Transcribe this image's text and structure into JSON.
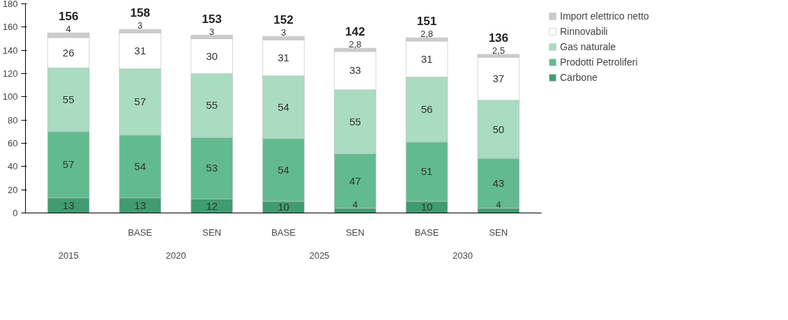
{
  "chart_data": {
    "type": "bar",
    "stacked": true,
    "categories": [
      null,
      "BASE",
      "SEN",
      "BASE",
      "SEN",
      "BASE",
      "SEN"
    ],
    "series": [
      {
        "name": "Carbone",
        "color": "#3f9c70",
        "values": [
          13,
          13,
          12,
          10,
          4,
          10,
          4
        ],
        "value_labels": [
          "13",
          "13",
          "12",
          "10",
          "4",
          "10",
          "4"
        ]
      },
      {
        "name": "Prodotti Petroliferi",
        "color": "#62bb8e",
        "values": [
          57,
          54,
          53,
          54,
          47,
          51,
          43
        ],
        "value_labels": [
          "57",
          "54",
          "53",
          "54",
          "47",
          "51",
          "43"
        ]
      },
      {
        "name": "Gas naturale",
        "color": "#aadcc2",
        "values": [
          55,
          57,
          55,
          54,
          55,
          56,
          50
        ],
        "value_labels": [
          "55",
          "57",
          "55",
          "54",
          "55",
          "56",
          "50"
        ]
      },
      {
        "name": "Rinnovabili",
        "color": "#ffffff",
        "values": [
          26,
          31,
          30,
          31,
          33,
          31,
          37
        ],
        "value_labels": [
          "26",
          "31",
          "30",
          "31",
          "33",
          "31",
          "37"
        ]
      },
      {
        "name": "Import elettrico netto",
        "color": "#cccccc",
        "values": [
          4,
          3,
          3,
          3,
          2.8,
          2.8,
          2.5
        ],
        "value_labels": [
          "4",
          "3",
          "3",
          "3",
          "2,8",
          "2,8",
          "2,5"
        ]
      }
    ],
    "totals": [
      "156",
      "158",
      "153",
      "152",
      "142",
      "151",
      "136"
    ],
    "annotations": [
      "2015",
      "2020",
      "2025",
      "2030"
    ],
    "ylim": [
      0,
      180
    ],
    "yticks": [
      0,
      20,
      40,
      60,
      80,
      100,
      120,
      140,
      160,
      180
    ],
    "grid": false,
    "legend": "right"
  }
}
